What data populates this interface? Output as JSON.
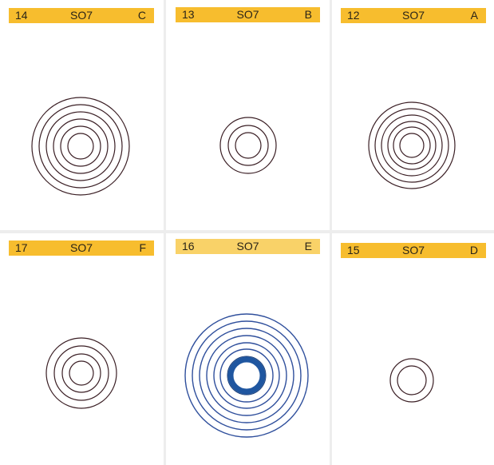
{
  "colors": {
    "header_bg": "#f7bd2e",
    "header_bg_light": "#f9d268",
    "ring": "#3a1e24",
    "ring_blue": "#2f4f9c",
    "ring_blue_thick": "#1f56a0"
  },
  "cards": [
    {
      "number": "14",
      "code": "SO7",
      "letter": "C",
      "rings": 6
    },
    {
      "number": "13",
      "code": "SO7",
      "letter": "B",
      "rings": 3
    },
    {
      "number": "12",
      "code": "SO7",
      "letter": "A",
      "rings": 6
    },
    {
      "number": "17",
      "code": "SO7",
      "letter": "F",
      "rings": 4
    },
    {
      "number": "16",
      "code": "SO7",
      "letter": "E",
      "rings": 8
    },
    {
      "number": "15",
      "code": "SO7",
      "letter": "D",
      "rings": 2
    }
  ]
}
